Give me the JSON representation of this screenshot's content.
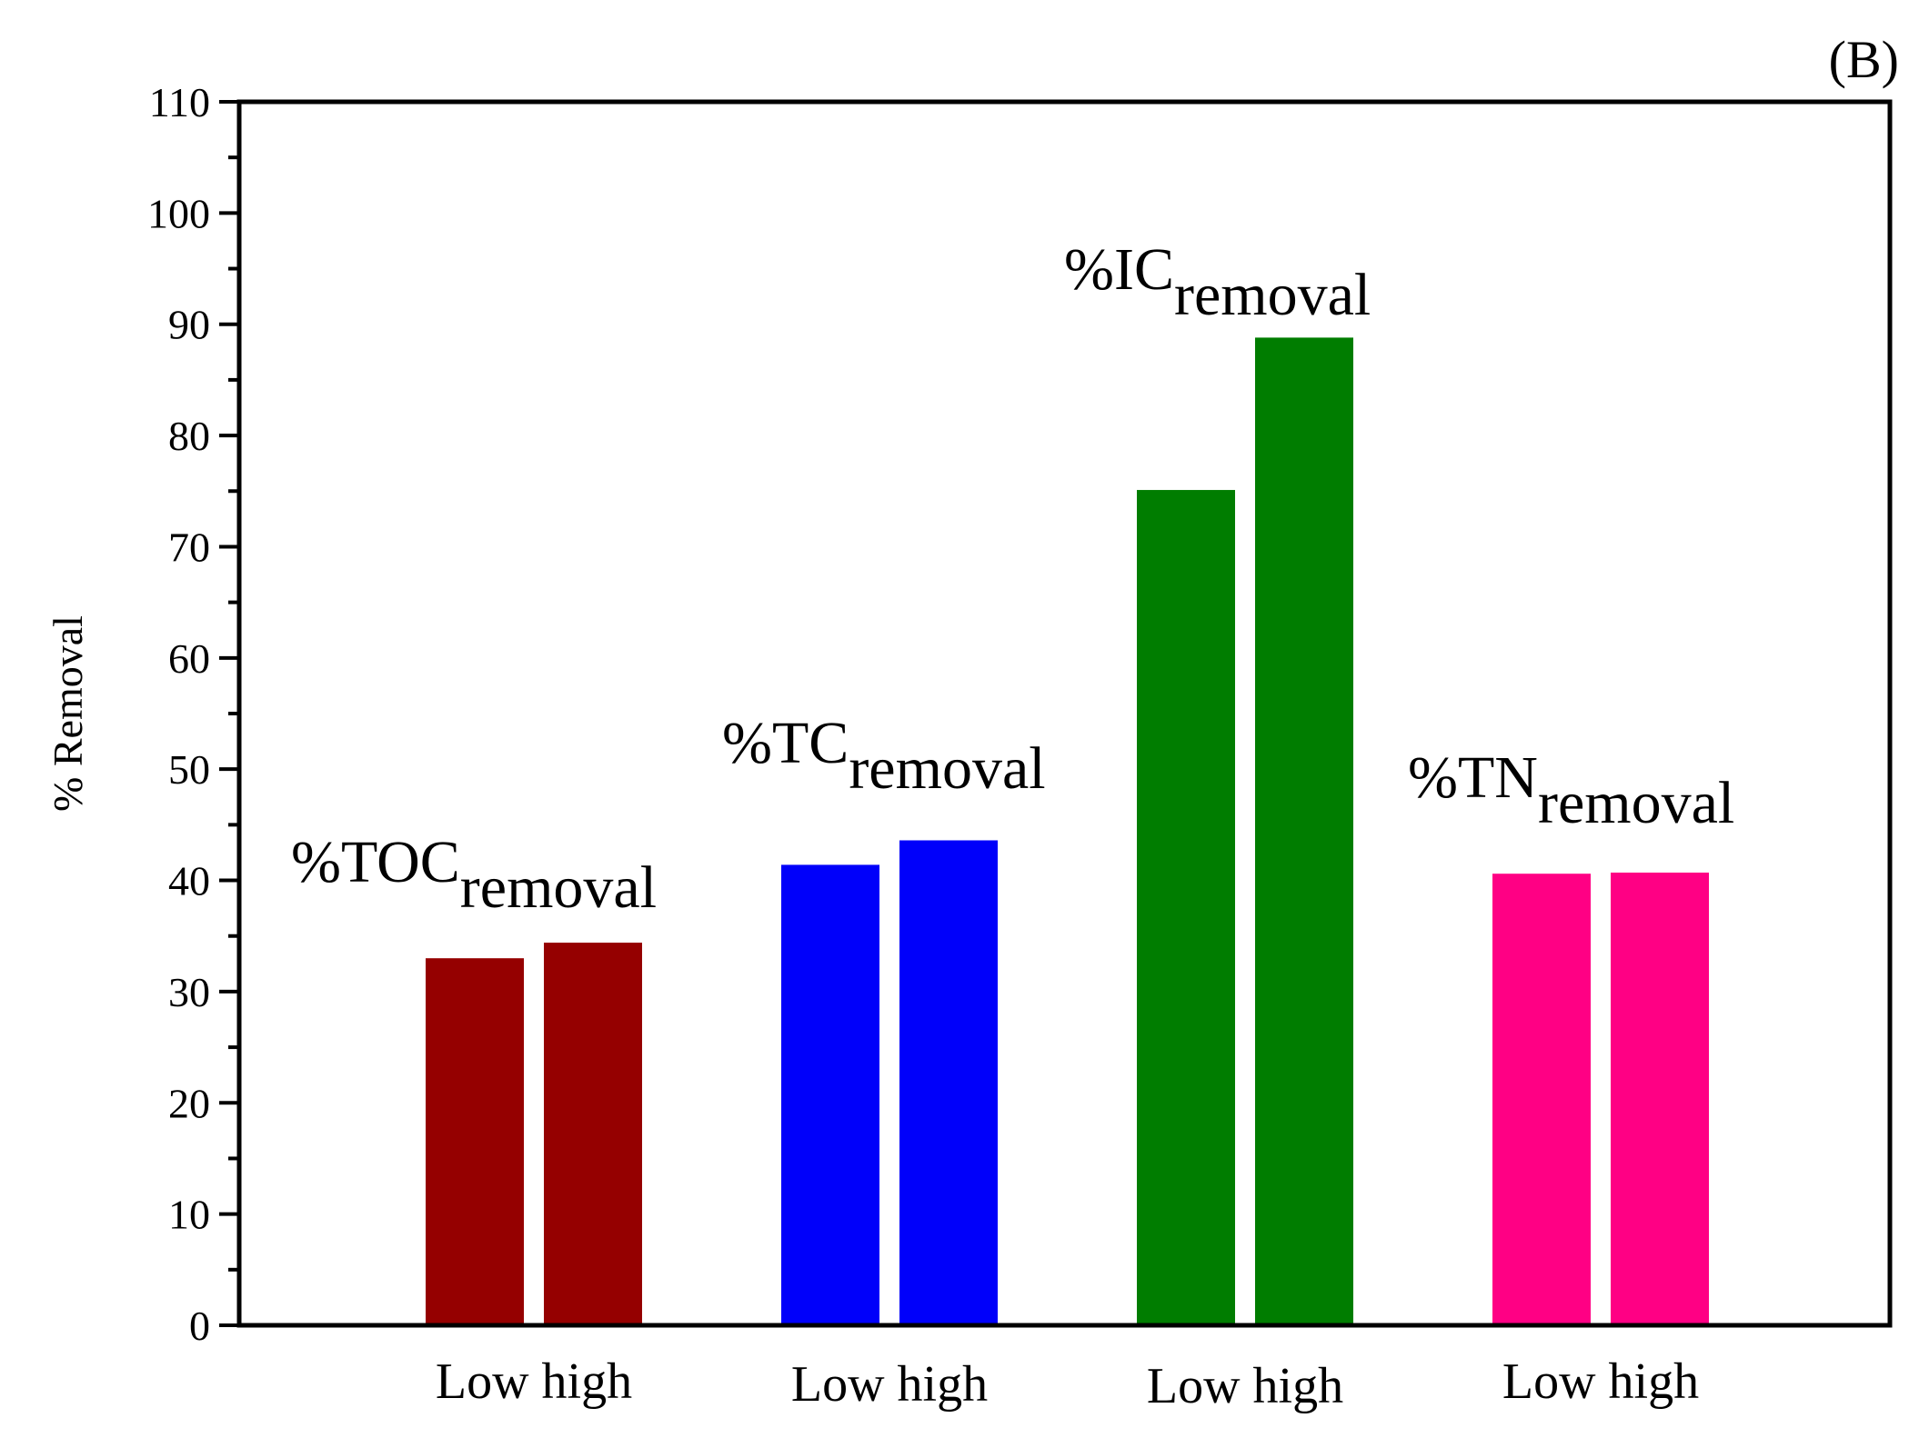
{
  "panel_label": "(B)",
  "chart_data": {
    "type": "bar",
    "title": "",
    "xlabel": "",
    "ylabel": "% Removal",
    "ylim": [
      0,
      110
    ],
    "ytick_step": 10,
    "yticks": [
      "0",
      "10",
      "20",
      "30",
      "40",
      "50",
      "60",
      "70",
      "80",
      "90",
      "100",
      "110"
    ],
    "groups": [
      {
        "name": "%TOC",
        "subscript": "removal",
        "x_label": "Low high",
        "color": "#950000",
        "bars": [
          {
            "level": "Low",
            "value": 33
          },
          {
            "level": "high",
            "value": 34.4
          }
        ]
      },
      {
        "name": "%TC",
        "subscript": "removal",
        "x_label": "Low high",
        "color": "#0000fa",
        "bars": [
          {
            "level": "Low",
            "value": 41.4
          },
          {
            "level": "high",
            "value": 43.6
          }
        ]
      },
      {
        "name": "%IC",
        "subscript": "removal",
        "x_label": "Low high",
        "color": "#007d00",
        "bars": [
          {
            "level": "Low",
            "value": 75.1
          },
          {
            "level": "high",
            "value": 88.8
          }
        ]
      },
      {
        "name": "%TN",
        "subscript": "removal",
        "x_label": "Low high",
        "color": "#ff0084",
        "bars": [
          {
            "level": "Low",
            "value": 40.6
          },
          {
            "level": "high",
            "value": 40.7
          }
        ]
      }
    ]
  }
}
